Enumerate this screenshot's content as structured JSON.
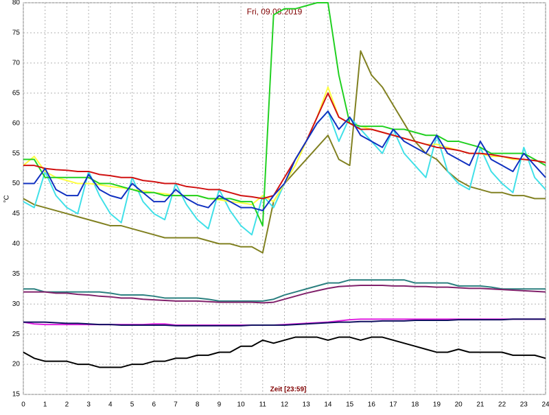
{
  "chart_data": {
    "type": "line",
    "title": "Fri, 09.08.2019",
    "x_label": "Zeit [23:59]",
    "y_label": "°C",
    "x": [
      0,
      0.5,
      1,
      1.5,
      2,
      2.5,
      3,
      3.5,
      4,
      4.5,
      5,
      5.5,
      6,
      6.5,
      7,
      7.5,
      8,
      8.5,
      9,
      9.5,
      10,
      10.5,
      11,
      11.5,
      12,
      12.5,
      13,
      13.5,
      14,
      14.5,
      15,
      15.5,
      16,
      16.5,
      17,
      17.5,
      18,
      18.5,
      19,
      19.5,
      20,
      20.5,
      21,
      21.5,
      22,
      22.5,
      23,
      23.5,
      24
    ],
    "xlim": [
      0,
      24
    ],
    "xticks": [
      0,
      1,
      2,
      3,
      4,
      5,
      6,
      7,
      8,
      9,
      10,
      11,
      12,
      13,
      14,
      15,
      16,
      17,
      18,
      19,
      20,
      21,
      22,
      23,
      24
    ],
    "ylim": [
      15,
      80
    ],
    "yticks": [
      15,
      20,
      25,
      30,
      35,
      40,
      45,
      50,
      55,
      60,
      65,
      70,
      75,
      80
    ],
    "grid": true,
    "series": [
      {
        "color": "#000000",
        "values": [
          22,
          21,
          20.5,
          20.5,
          20.5,
          20,
          20,
          19.5,
          19.5,
          19.5,
          20,
          20,
          20.5,
          20.5,
          21,
          21,
          21.5,
          21.5,
          22,
          22,
          23,
          23,
          24,
          23.5,
          24,
          24.5,
          24.5,
          24.5,
          24,
          24.5,
          24.5,
          24,
          24.5,
          24.5,
          24,
          23.5,
          23,
          22.5,
          22,
          22,
          22.5,
          22,
          22,
          22,
          22,
          21.5,
          21.5,
          21.5,
          21
        ]
      },
      {
        "color": "#2a7f7f",
        "values": [
          32.5,
          32.5,
          32,
          32,
          32,
          32,
          32,
          32,
          31.8,
          31.5,
          31.5,
          31.5,
          31.3,
          31,
          31,
          31,
          31,
          30.8,
          30.5,
          30.5,
          30.5,
          30.5,
          30.5,
          30.8,
          31.5,
          32,
          32.5,
          33,
          33.5,
          33.5,
          34,
          34,
          34,
          34,
          34,
          34,
          33.5,
          33.5,
          33.5,
          33.5,
          33,
          33,
          33,
          32.8,
          32.5,
          32.5,
          32.5,
          32.5,
          32.5
        ]
      },
      {
        "color": "#80206a",
        "values": [
          32,
          32,
          32,
          31.8,
          31.8,
          31.6,
          31.5,
          31.3,
          31.2,
          31,
          31,
          30.8,
          30.7,
          30.6,
          30.5,
          30.5,
          30.5,
          30.4,
          30.3,
          30.3,
          30.3,
          30.3,
          30.2,
          30.3,
          30.8,
          31.3,
          31.8,
          32.2,
          32.6,
          32.9,
          33,
          33.1,
          33.1,
          33.1,
          33,
          33,
          32.9,
          32.9,
          32.8,
          32.8,
          32.7,
          32.6,
          32.6,
          32.5,
          32.4,
          32.3,
          32.2,
          32.1,
          32
        ]
      },
      {
        "color": "#e020e0",
        "values": [
          27,
          26.7,
          26.6,
          26.6,
          26.6,
          26.6,
          26.6,
          26.6,
          26.6,
          26.6,
          26.6,
          26.6,
          26.7,
          26.7,
          26.5,
          26.5,
          26.5,
          26.5,
          26.5,
          26.5,
          26.5,
          26.5,
          26.5,
          26.5,
          26.6,
          26.7,
          26.8,
          26.9,
          27,
          27.2,
          27.4,
          27.5,
          27.5,
          27.5,
          27.5,
          27.5,
          27.5,
          27.5,
          27.5,
          27.5,
          27.5,
          27.5,
          27.5,
          27.5,
          27.5,
          27.5,
          27.5,
          27.5,
          27.5
        ]
      },
      {
        "color": "#101060",
        "values": [
          27,
          27,
          27,
          26.9,
          26.8,
          26.8,
          26.7,
          26.6,
          26.6,
          26.5,
          26.5,
          26.5,
          26.5,
          26.5,
          26.4,
          26.4,
          26.4,
          26.4,
          26.4,
          26.4,
          26.4,
          26.5,
          26.5,
          26.5,
          26.5,
          26.6,
          26.7,
          26.8,
          26.9,
          27,
          27,
          27.1,
          27.1,
          27.2,
          27.2,
          27.2,
          27.3,
          27.3,
          27.3,
          27.3,
          27.4,
          27.4,
          27.4,
          27.4,
          27.4,
          27.5,
          27.5,
          27.5,
          27.5
        ]
      },
      {
        "color": "#808020",
        "values": [
          47.5,
          46.5,
          46,
          45.5,
          45,
          44.5,
          44,
          43.5,
          43,
          43,
          42.5,
          42,
          41.5,
          41,
          41,
          41,
          41,
          40.5,
          40,
          40,
          39.5,
          39.5,
          38.5,
          47,
          50,
          52,
          54,
          56,
          58,
          54,
          53,
          72,
          68,
          66,
          63,
          60,
          57,
          55,
          54,
          52,
          50.5,
          49.5,
          49,
          48.5,
          48.5,
          48,
          48,
          47.5,
          47.5
        ]
      },
      {
        "color": "#40e0e8",
        "values": [
          47,
          46,
          52,
          48,
          46,
          45,
          52,
          48,
          45,
          43.5,
          51,
          47,
          45,
          44,
          50,
          46.5,
          44,
          42.5,
          49,
          45.5,
          43,
          41.5,
          48,
          46,
          50,
          54,
          57,
          60,
          62,
          57,
          61,
          59,
          57,
          55,
          59,
          55,
          53,
          51,
          58,
          52,
          50,
          49,
          56,
          52,
          50,
          48.5,
          56,
          51,
          49
        ]
      },
      {
        "color": "#ffff40",
        "values": [
          53,
          54.5,
          52,
          51,
          50.5,
          50,
          50,
          49.8,
          49.5,
          49.3,
          49,
          48.8,
          48.5,
          48.3,
          48,
          48,
          48,
          47.5,
          47.3,
          47,
          46.8,
          46.5,
          48,
          47,
          50,
          53,
          57,
          61,
          66,
          61,
          60,
          59.5,
          59,
          58.5,
          58,
          57.5,
          57,
          56.5,
          56.5,
          56,
          55.5,
          55,
          55,
          54.5,
          54.5,
          54,
          54,
          53.8,
          53.5
        ]
      },
      {
        "color": "#20d020",
        "values": [
          54,
          54,
          51,
          51,
          51,
          51,
          51,
          50,
          50,
          49.5,
          49,
          48.5,
          48.5,
          48,
          48,
          48,
          48,
          47.5,
          47.5,
          47.5,
          47,
          47,
          43,
          78,
          79,
          79,
          79.5,
          80,
          80,
          68,
          60,
          59.5,
          59.5,
          59.5,
          59,
          59,
          58.5,
          58,
          58,
          57,
          57,
          56.5,
          56,
          55,
          55,
          55,
          55,
          54,
          53
        ]
      },
      {
        "color": "#d01010",
        "values": [
          53,
          53,
          52.5,
          52.3,
          52.2,
          52,
          52,
          51.5,
          51.3,
          51,
          51,
          50.5,
          50.3,
          50,
          50,
          49.5,
          49.3,
          49,
          49,
          48.5,
          48,
          47.8,
          47.5,
          48,
          51,
          54,
          57,
          61,
          65,
          61,
          60,
          59,
          59,
          58.5,
          58,
          57.5,
          57,
          56.5,
          56,
          55.8,
          55.5,
          55,
          55,
          54.8,
          54.5,
          54.2,
          54,
          53.8,
          53.5
        ]
      },
      {
        "color": "#1030c0",
        "values": [
          50,
          50,
          52.5,
          49,
          48,
          48,
          51.5,
          49,
          48,
          47.5,
          50,
          48.5,
          47,
          47,
          49,
          47.5,
          46.5,
          46,
          48,
          47,
          46,
          46,
          45.5,
          48,
          50,
          54,
          57,
          60,
          62,
          59,
          61,
          58,
          57,
          56,
          59,
          57,
          56,
          55,
          58,
          55,
          54,
          53,
          57,
          54,
          53,
          52,
          55,
          53,
          51
        ]
      }
    ]
  }
}
